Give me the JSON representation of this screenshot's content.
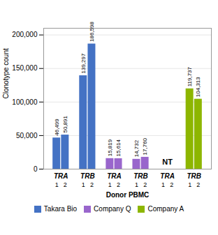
{
  "chart_data": {
    "type": "bar",
    "categories": [
      "1",
      "2",
      "1",
      "2",
      "1",
      "2",
      "1",
      "2",
      "1",
      "2",
      "1",
      "2"
    ],
    "group_labels": [
      "TRA",
      "TRB",
      "TRA",
      "TRB",
      "TRA",
      "TRB"
    ],
    "series": [
      {
        "name": "Takara Bio",
        "color": "#4472C4",
        "values": [
          46499,
          50891,
          139297,
          186598,
          null,
          null,
          null,
          null,
          null,
          null,
          null,
          null
        ],
        "value_labels": [
          "46,499",
          "50,891",
          "139,297",
          "186,598",
          null,
          null,
          null,
          null,
          null,
          null,
          null,
          null
        ]
      },
      {
        "name": "Company Q",
        "color": "#9966CC",
        "values": [
          null,
          null,
          null,
          null,
          15819,
          15614,
          14732,
          17760,
          null,
          null,
          null,
          null
        ],
        "value_labels": [
          null,
          null,
          null,
          null,
          "15,819",
          "15,614",
          "14,732",
          "17,760",
          null,
          null,
          null,
          null
        ]
      },
      {
        "name": "Company A",
        "color": "#8DB600",
        "values": [
          null,
          null,
          null,
          null,
          null,
          null,
          null,
          null,
          null,
          null,
          119737,
          104313
        ],
        "value_labels": [
          null,
          null,
          null,
          null,
          null,
          null,
          null,
          null,
          null,
          null,
          "119,737",
          "104,313"
        ]
      }
    ],
    "xlabel": "Donor PBMC",
    "ylabel": "Clonotype count",
    "ylim": [
      0,
      210000
    ],
    "yticks": [
      0,
      {
        "value": 50000,
        "label": "50,000"
      },
      {
        "value": 100000,
        "label": "100,000"
      },
      {
        "value": 150000,
        "label": "150,000"
      },
      {
        "value": 200000,
        "label": "200,000"
      }
    ],
    "grid": true,
    "legend": "bottom",
    "data_labels": true,
    "annotations": [
      {
        "text": "NT",
        "x": 4,
        "y": 10000
      }
    ]
  }
}
